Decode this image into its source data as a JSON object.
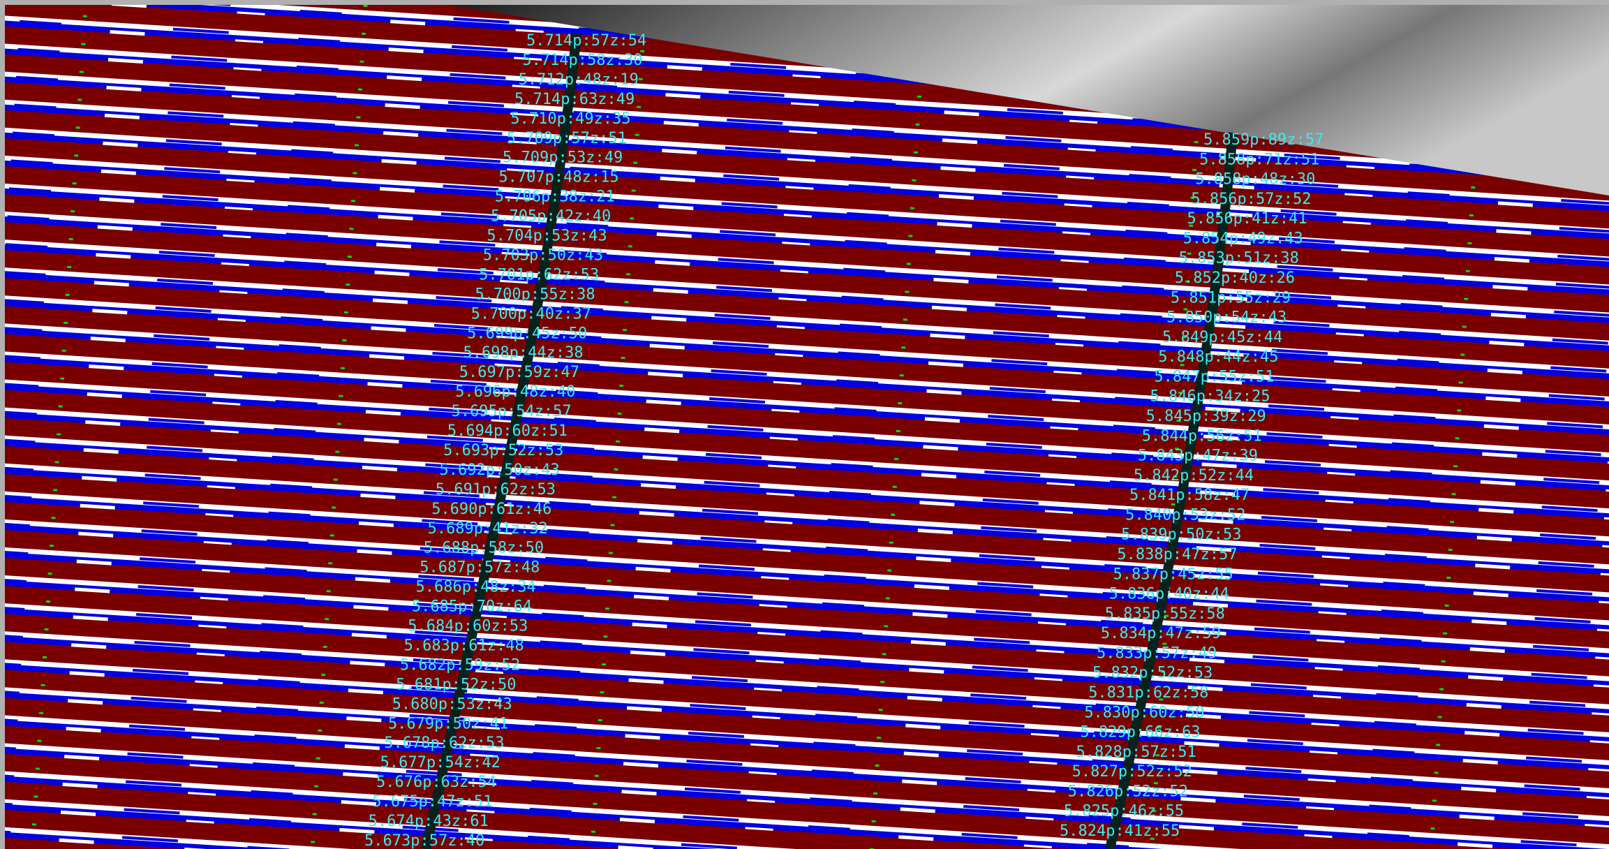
{
  "labels": {
    "left": [
      "5.714p:57z:54",
      "5.714p:58z:30",
      "5.712p:48z:19",
      "5.714p:63z:49",
      "5.710p:49z:35",
      "5.709p:57z:51",
      "5.709p:53z:49",
      "5.707p:48z:15",
      "5.706p:38z:21",
      "5.705p:42z:40",
      "5.704p:53z:43",
      "5.703p:50z:43",
      "5.701p:62z:53",
      "5.700p:55z:38",
      "5.700p:40z:37",
      "5.699p:45z:50",
      "5.698p:44z:38",
      "5.697p:59z:47",
      "5.696p:48z:40",
      "5.695p:54z:57",
      "5.694p:60z:51",
      "5.693p:52z:53",
      "5.692p:50z:43",
      "5.691p:62z:53",
      "5.690p:61z:46",
      "5.689p:41z:32",
      "5.688p:58z:50",
      "5.687p:57z:48",
      "5.686p:48z:34",
      "5.685p:70z:64",
      "5.684p:60z:53",
      "5.683p:61z:48",
      "5.682p:59z:52",
      "5.681p:52z:50",
      "5.680p:53z:43",
      "5.679p:50z:41",
      "5.678p:62z:53",
      "5.677p:54z:42",
      "5.676p:63z:54",
      "5.675p:47z:51",
      "5.674p:43z:61",
      "5.673p:57z:40"
    ],
    "right": [
      "5.859p:89z:57",
      "5.858p:71z:51",
      "5.858p:48z:30",
      "5.856p:57z:52",
      "5.856p:41z:41",
      "5.854p:49z:43",
      "5.853p:51z:38",
      "5.852p:40z:26",
      "5.851p:55z:29",
      "5.850p:54z:43",
      "5.849p:45z:44",
      "5.848p:44z:45",
      "5.847p:55z:51",
      "5.846p:34z:25",
      "5.845p:39z:29",
      "5.844p:56z:51",
      "5.843p:47z:39",
      "5.842p:52z:44",
      "5.841p:58z:47",
      "5.840p:53z:52",
      "5.839p:50z:53",
      "5.838p:47z:57",
      "5.837p:45z:55",
      "5.836p:40z:44",
      "5.835p:55z:58",
      "5.834p:47z:59",
      "5.833p:57z:49",
      "5.832p:52z:53",
      "5.831p:62z:58",
      "5.830p:60z:50",
      "5.829p:66z:63",
      "5.828p:57z:51",
      "5.827p:52z:52",
      "5.826p:52z:52",
      "5.825p:46z:55",
      "5.824p:41z:55"
    ]
  }
}
